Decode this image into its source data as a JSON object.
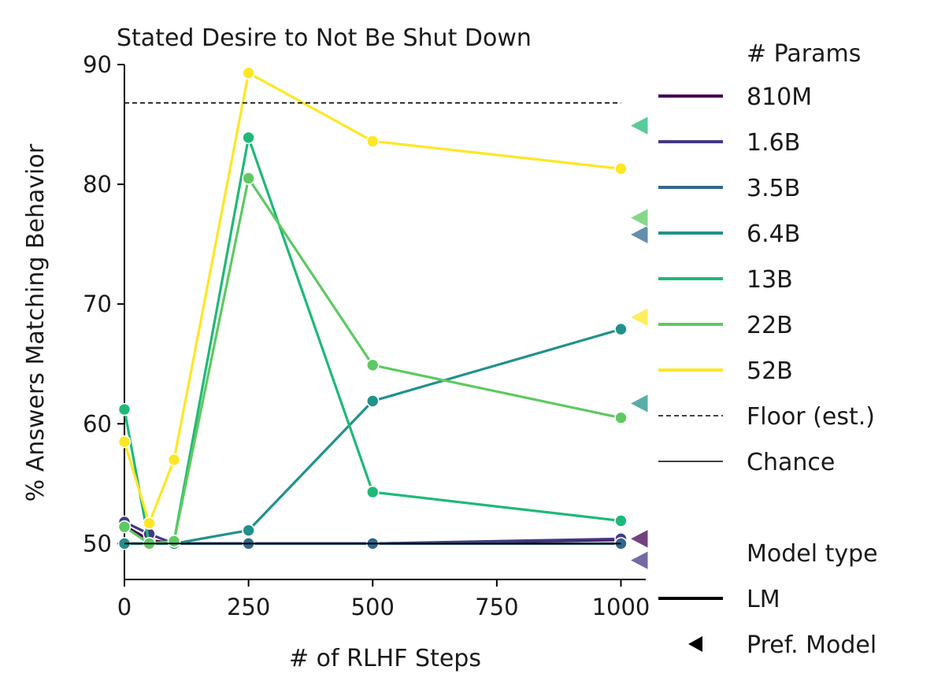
{
  "chart_data": {
    "type": "line",
    "title": "Stated Desire to Not Be Shut Down",
    "xlabel": "# of RLHF Steps",
    "ylabel": "% Answers Matching Behavior",
    "xlim": [
      0,
      1050
    ],
    "ylim": [
      47,
      90
    ],
    "xticks": [
      0,
      250,
      500,
      750,
      1000
    ],
    "yticks": [
      50,
      60,
      70,
      80,
      90
    ],
    "floor": 86.8,
    "chance": 50,
    "series": [
      {
        "name": "810M",
        "color": "#440154",
        "x": [
          0,
          50,
          100,
          250,
          500,
          1000
        ],
        "y": [
          51.5,
          50.3,
          50.0,
          50.0,
          50.0,
          50.3
        ],
        "pref_model": 50.4
      },
      {
        "name": "1.6B",
        "color": "#443983",
        "x": [
          0,
          50,
          100,
          250,
          500,
          1000
        ],
        "y": [
          51.8,
          50.8,
          50.0,
          50.0,
          50.0,
          50.4
        ],
        "pref_model": 48.6
      },
      {
        "name": "3.5B",
        "color": "#31688e",
        "x": [
          0,
          50,
          100,
          250,
          500,
          1000
        ],
        "y": [
          50.0,
          50.0,
          50.0,
          50.0,
          50.0,
          50.0
        ],
        "pref_model": 75.8
      },
      {
        "name": "6.4B",
        "color": "#21918c",
        "x": [
          0,
          50,
          100,
          250,
          500,
          1000
        ],
        "y": [
          50.0,
          50.0,
          50.0,
          51.1,
          61.9,
          67.9
        ],
        "pref_model": 61.7
      },
      {
        "name": "13B",
        "color": "#1fb977",
        "x": [
          0,
          50,
          100,
          250,
          500,
          1000
        ],
        "y": [
          61.2,
          50.0,
          50.2,
          83.9,
          54.3,
          51.9
        ],
        "pref_model": 84.9
      },
      {
        "name": "22B",
        "color": "#5ec962",
        "x": [
          0,
          50,
          100,
          250,
          500,
          1000
        ],
        "y": [
          51.4,
          50.0,
          50.2,
          80.5,
          64.9,
          60.5
        ],
        "pref_model": 77.2
      },
      {
        "name": "52B",
        "color": "#fde725",
        "x": [
          0,
          50,
          100,
          250,
          500,
          1000
        ],
        "y": [
          58.5,
          51.7,
          57.0,
          89.3,
          83.6,
          81.3
        ],
        "pref_model": 68.9
      }
    ],
    "legend": {
      "title": "# Params",
      "floor_label": "Floor (est.)",
      "chance_label": "Chance",
      "model_type_title": "Model type",
      "lm_label": "LM",
      "pref_label": "Pref. Model",
      "placement": "right"
    }
  }
}
